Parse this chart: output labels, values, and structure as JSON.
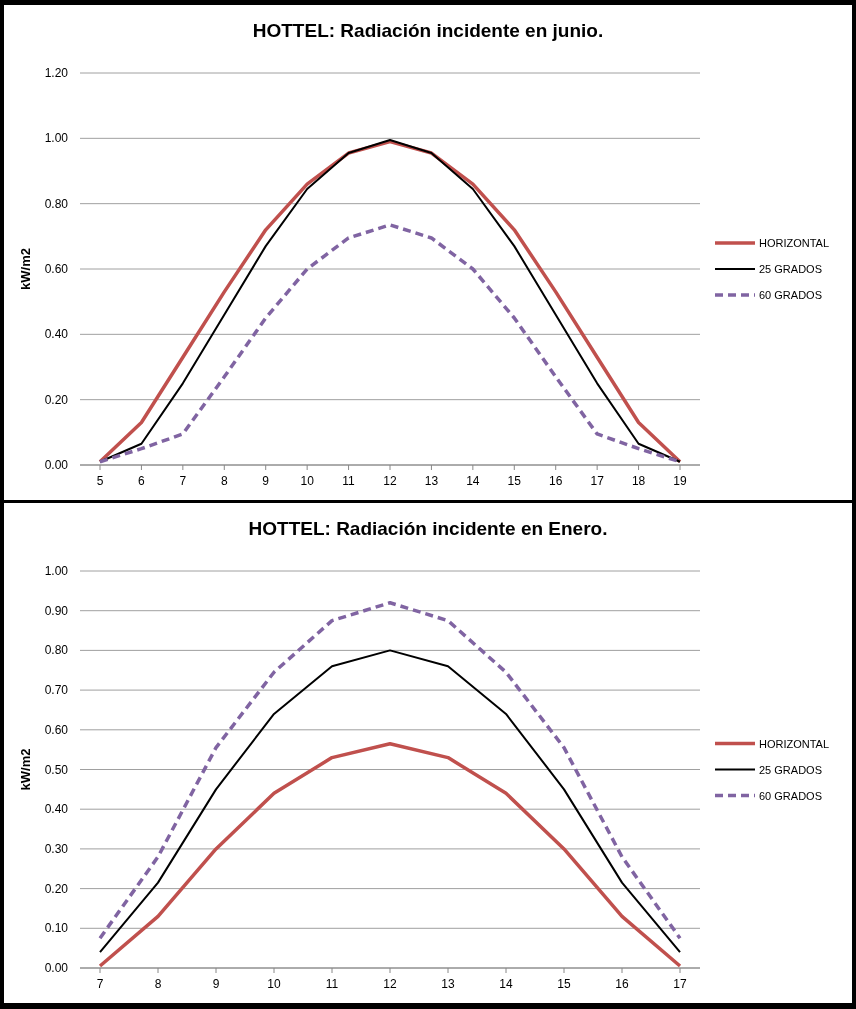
{
  "chart_data": [
    {
      "type": "line",
      "title": "HOTTEL: Radiación incidente en junio.",
      "ylabel": "kW/m2",
      "categories": [
        "5",
        "6",
        "7",
        "8",
        "9",
        "10",
        "11",
        "12",
        "13",
        "14",
        "15",
        "16",
        "17",
        "18",
        "19"
      ],
      "ylim": [
        0,
        1.2
      ],
      "yticks": [
        {
          "value": 0,
          "label": "0.00"
        },
        {
          "value": 0.2,
          "label": "0.20"
        },
        {
          "value": 0.4,
          "label": "0.40"
        },
        {
          "value": 0.6,
          "label": "0.60"
        },
        {
          "value": 0.8,
          "label": "0.80"
        },
        {
          "value": 1,
          "label": "1.00"
        },
        {
          "value": 1.2,
          "label": "1.20"
        }
      ],
      "grid": "y",
      "legend": "right",
      "marker": "none",
      "series": [
        {
          "name": "HORIZONTAL",
          "color": "#c0504d",
          "line_style": "solid",
          "values": [
            0.01,
            0.13,
            0.33,
            0.53,
            0.72,
            0.86,
            0.955,
            0.99,
            0.955,
            0.86,
            0.72,
            0.53,
            0.33,
            0.13,
            0.01
          ]
        },
        {
          "name": "25 GRADOS",
          "color": "#000000",
          "line_style": "solid",
          "values": [
            0.01,
            0.065,
            0.25,
            0.46,
            0.67,
            0.845,
            0.955,
            0.995,
            0.955,
            0.845,
            0.67,
            0.46,
            0.25,
            0.065,
            0.01
          ]
        },
        {
          "name": "60 GRADOS",
          "color": "#8064a2",
          "line_style": "dashed",
          "values": [
            0.01,
            0.05,
            0.095,
            0.27,
            0.45,
            0.6,
            0.695,
            0.735,
            0.695,
            0.6,
            0.45,
            0.27,
            0.095,
            0.05,
            0.01
          ]
        }
      ]
    },
    {
      "type": "line",
      "title": "HOTTEL: Radiación incidente en Enero.",
      "ylabel": "kW/m2",
      "categories": [
        "7",
        "8",
        "9",
        "10",
        "11",
        "12",
        "13",
        "14",
        "15",
        "16",
        "17"
      ],
      "ylim": [
        0,
        1
      ],
      "yticks": [
        {
          "value": 0,
          "label": "0.00"
        },
        {
          "value": 0.1,
          "label": "0.10"
        },
        {
          "value": 0.2,
          "label": "0.20"
        },
        {
          "value": 0.3,
          "label": "0.30"
        },
        {
          "value": 0.4,
          "label": "0.40"
        },
        {
          "value": 0.5,
          "label": "0.50"
        },
        {
          "value": 0.6,
          "label": "0.60"
        },
        {
          "value": 0.7,
          "label": "0.70"
        },
        {
          "value": 0.8,
          "label": "0.80"
        },
        {
          "value": 0.9,
          "label": "0.90"
        },
        {
          "value": 1,
          "label": "1.00"
        }
      ],
      "grid": "y",
      "legend": "right",
      "marker": "none",
      "series": [
        {
          "name": "HORIZONTAL",
          "color": "#c0504d",
          "line_style": "solid",
          "values": [
            0.005,
            0.13,
            0.3,
            0.44,
            0.53,
            0.565,
            0.53,
            0.44,
            0.3,
            0.13,
            0.005
          ]
        },
        {
          "name": "25 GRADOS",
          "color": "#000000",
          "line_style": "solid",
          "values": [
            0.04,
            0.215,
            0.45,
            0.64,
            0.76,
            0.8,
            0.76,
            0.64,
            0.45,
            0.215,
            0.04
          ]
        },
        {
          "name": "60 GRADOS",
          "color": "#8064a2",
          "line_style": "dashed",
          "values": [
            0.075,
            0.28,
            0.555,
            0.745,
            0.875,
            0.92,
            0.875,
            0.745,
            0.555,
            0.28,
            0.075
          ]
        }
      ]
    }
  ]
}
